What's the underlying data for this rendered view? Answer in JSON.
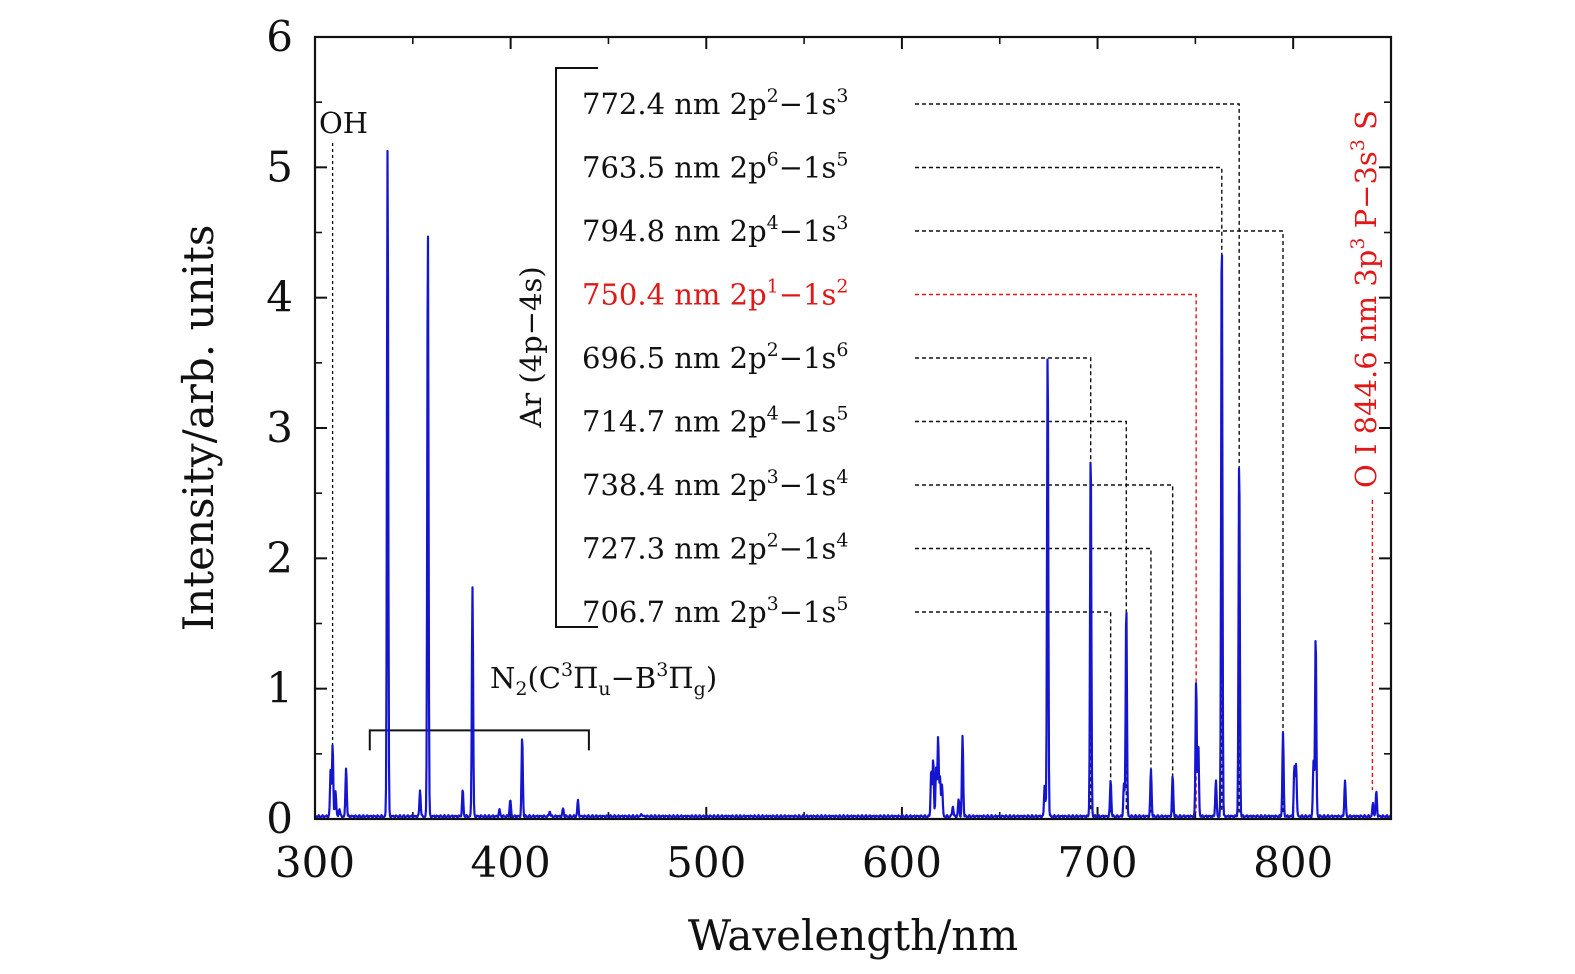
{
  "chart_data": {
    "type": "line",
    "title": "",
    "xlabel": "Wavelength/nm",
    "ylabel": "Intensity/arb. units",
    "xlim": [
      300,
      850
    ],
    "ylim": [
      0,
      6
    ],
    "xticks": [
      300,
      400,
      500,
      600,
      700,
      800
    ],
    "yticks": [
      0,
      1,
      2,
      3,
      4,
      5,
      6
    ],
    "grid": false,
    "series": [
      {
        "name": "emission spectrum",
        "color": "#1515d0",
        "baseline": 0.02,
        "peaks": [
          {
            "x": 308.0,
            "y": 0.36
          },
          {
            "x": 309.0,
            "y": 0.55
          },
          {
            "x": 310.5,
            "y": 0.2
          },
          {
            "x": 312.5,
            "y": 0.06
          },
          {
            "x": 315.9,
            "y": 0.38
          },
          {
            "x": 337.1,
            "y": 5.15
          },
          {
            "x": 353.7,
            "y": 0.2
          },
          {
            "x": 357.7,
            "y": 4.53
          },
          {
            "x": 375.5,
            "y": 0.2
          },
          {
            "x": 380.5,
            "y": 1.76
          },
          {
            "x": 394.3,
            "y": 0.05
          },
          {
            "x": 399.8,
            "y": 0.13
          },
          {
            "x": 405.9,
            "y": 0.61
          },
          {
            "x": 420.0,
            "y": 0.04
          },
          {
            "x": 426.8,
            "y": 0.06
          },
          {
            "x": 434.4,
            "y": 0.12
          },
          {
            "x": 467.0,
            "y": 0.02
          },
          {
            "x": 615.0,
            "y": 0.36
          },
          {
            "x": 616.0,
            "y": 0.44
          },
          {
            "x": 617.5,
            "y": 0.38
          },
          {
            "x": 618.5,
            "y": 0.62
          },
          {
            "x": 619.5,
            "y": 0.3
          },
          {
            "x": 620.5,
            "y": 0.25
          },
          {
            "x": 626.0,
            "y": 0.08
          },
          {
            "x": 629.0,
            "y": 0.13
          },
          {
            "x": 631.0,
            "y": 0.62
          },
          {
            "x": 673.0,
            "y": 0.25
          },
          {
            "x": 674.5,
            "y": 3.62
          },
          {
            "x": 696.5,
            "y": 2.85
          },
          {
            "x": 706.7,
            "y": 0.28
          },
          {
            "x": 713.5,
            "y": 0.25
          },
          {
            "x": 714.7,
            "y": 1.65
          },
          {
            "x": 727.3,
            "y": 0.36
          },
          {
            "x": 738.4,
            "y": 0.31
          },
          {
            "x": 750.4,
            "y": 1.05
          },
          {
            "x": 751.5,
            "y": 0.55
          },
          {
            "x": 760.5,
            "y": 0.28
          },
          {
            "x": 763.5,
            "y": 4.6
          },
          {
            "x": 772.4,
            "y": 2.78
          },
          {
            "x": 794.8,
            "y": 0.64
          },
          {
            "x": 800.6,
            "y": 0.38
          },
          {
            "x": 801.5,
            "y": 0.4
          },
          {
            "x": 810.4,
            "y": 0.42
          },
          {
            "x": 811.5,
            "y": 1.4
          },
          {
            "x": 826.5,
            "y": 0.28
          },
          {
            "x": 840.8,
            "y": 0.1
          },
          {
            "x": 842.5,
            "y": 0.19
          }
        ]
      }
    ],
    "annotations": {
      "oh": {
        "label": "OH",
        "x": 309
      },
      "n2": {
        "label_main": "N",
        "label_sub": "2",
        "label_open": "(C",
        "sup1": "3",
        "pi1": "Π",
        "sub_u": "u",
        "dash": "−B",
        "sup2": "3",
        "pi2": "Π",
        "sub_g": "g",
        "label_close": ")",
        "x_start": 328,
        "x_end": 440,
        "y": 0.68
      },
      "ar_group": {
        "label": "Ar (4p−4s)"
      },
      "ar_lines": [
        {
          "text": "772.4 nm 2p",
          "u": "2",
          "mid": "−1s",
          "l": "3",
          "x": 772.4,
          "color": "#111111"
        },
        {
          "text": "763.5 nm 2p",
          "u": "6",
          "mid": "−1s",
          "l": "5",
          "x": 763.5,
          "color": "#111111"
        },
        {
          "text": "794.8 nm 2p",
          "u": "4",
          "mid": "−1s",
          "l": "3",
          "x": 794.8,
          "color": "#111111"
        },
        {
          "text": "750.4 nm 2p",
          "u": "1",
          "mid": "−1s",
          "l": "2",
          "x": 750.4,
          "color": "#e01818"
        },
        {
          "text": "696.5 nm 2p",
          "u": "2",
          "mid": "−1s",
          "l": "6",
          "x": 696.5,
          "color": "#111111"
        },
        {
          "text": "714.7 nm 2p",
          "u": "4",
          "mid": "−1s",
          "l": "5",
          "x": 714.7,
          "color": "#111111"
        },
        {
          "text": "738.4 nm 2p",
          "u": "3",
          "mid": "−1s",
          "l": "4",
          "x": 738.4,
          "color": "#111111"
        },
        {
          "text": "727.3 nm 2p",
          "u": "2",
          "mid": "−1s",
          "l": "4",
          "x": 727.3,
          "color": "#111111"
        },
        {
          "text": "706.7 nm 2p",
          "u": "3",
          "mid": "−1s",
          "l": "5",
          "x": 706.7,
          "color": "#111111"
        }
      ],
      "oi": {
        "text_a": "O I 844.6 nm 3p",
        "sup_a": "3",
        "text_b": " P−3s",
        "sup_b": "3",
        "text_c": " S",
        "x": 840.5,
        "color": "#e01818"
      }
    }
  }
}
